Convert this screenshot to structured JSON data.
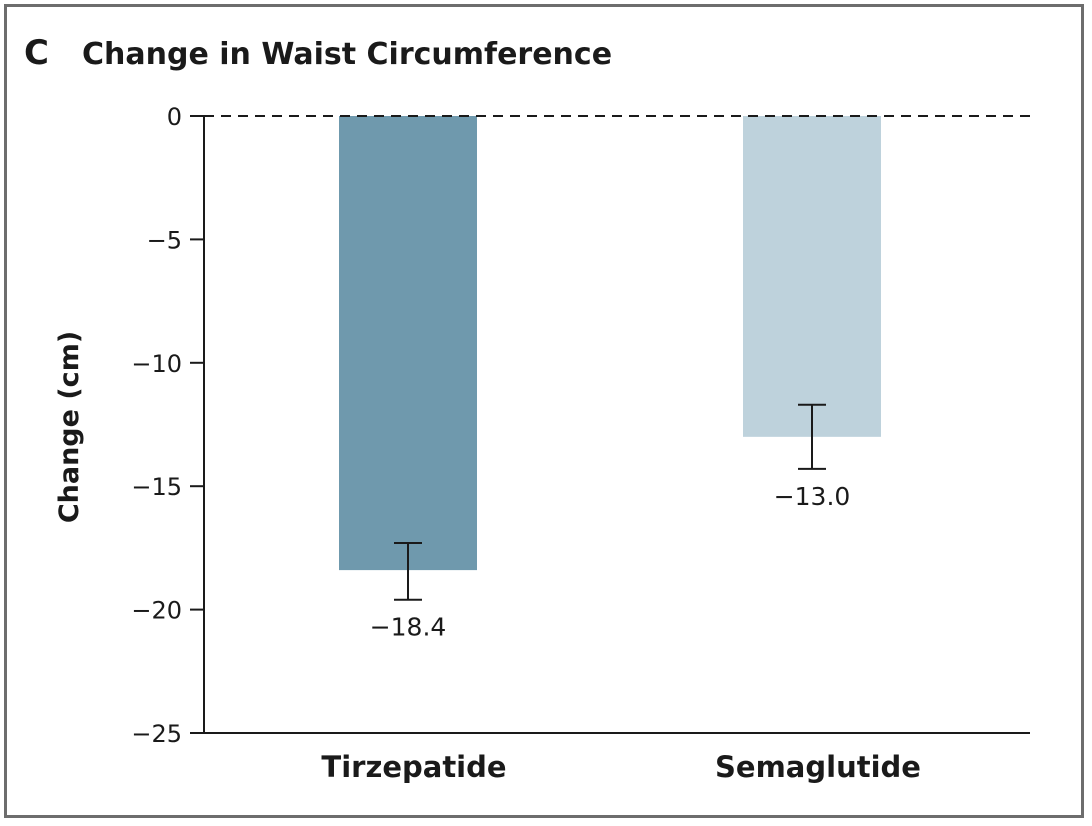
{
  "panel_letter": "C",
  "chart_data": {
    "type": "bar",
    "title": "Change in Waist Circumference",
    "xlabel": "",
    "ylabel": "Change (cm)",
    "categories": [
      "Tirzepatide",
      "Semaglutide"
    ],
    "values": [
      -18.4,
      -13.0
    ],
    "value_labels": [
      "−18.4",
      "−13.0"
    ],
    "error_low": [
      -19.6,
      -14.3
    ],
    "error_high": [
      -17.3,
      -11.7
    ],
    "ylim": [
      -25,
      0
    ],
    "yticks": [
      0,
      -5,
      -10,
      -15,
      -20,
      -25
    ],
    "ytick_labels": [
      "0",
      "−5",
      "−10",
      "−15",
      "−20",
      "−25"
    ],
    "reference_line": 0,
    "grid": false,
    "legend": "none",
    "colors": [
      "#6f99ad",
      "#bed2dc"
    ]
  }
}
